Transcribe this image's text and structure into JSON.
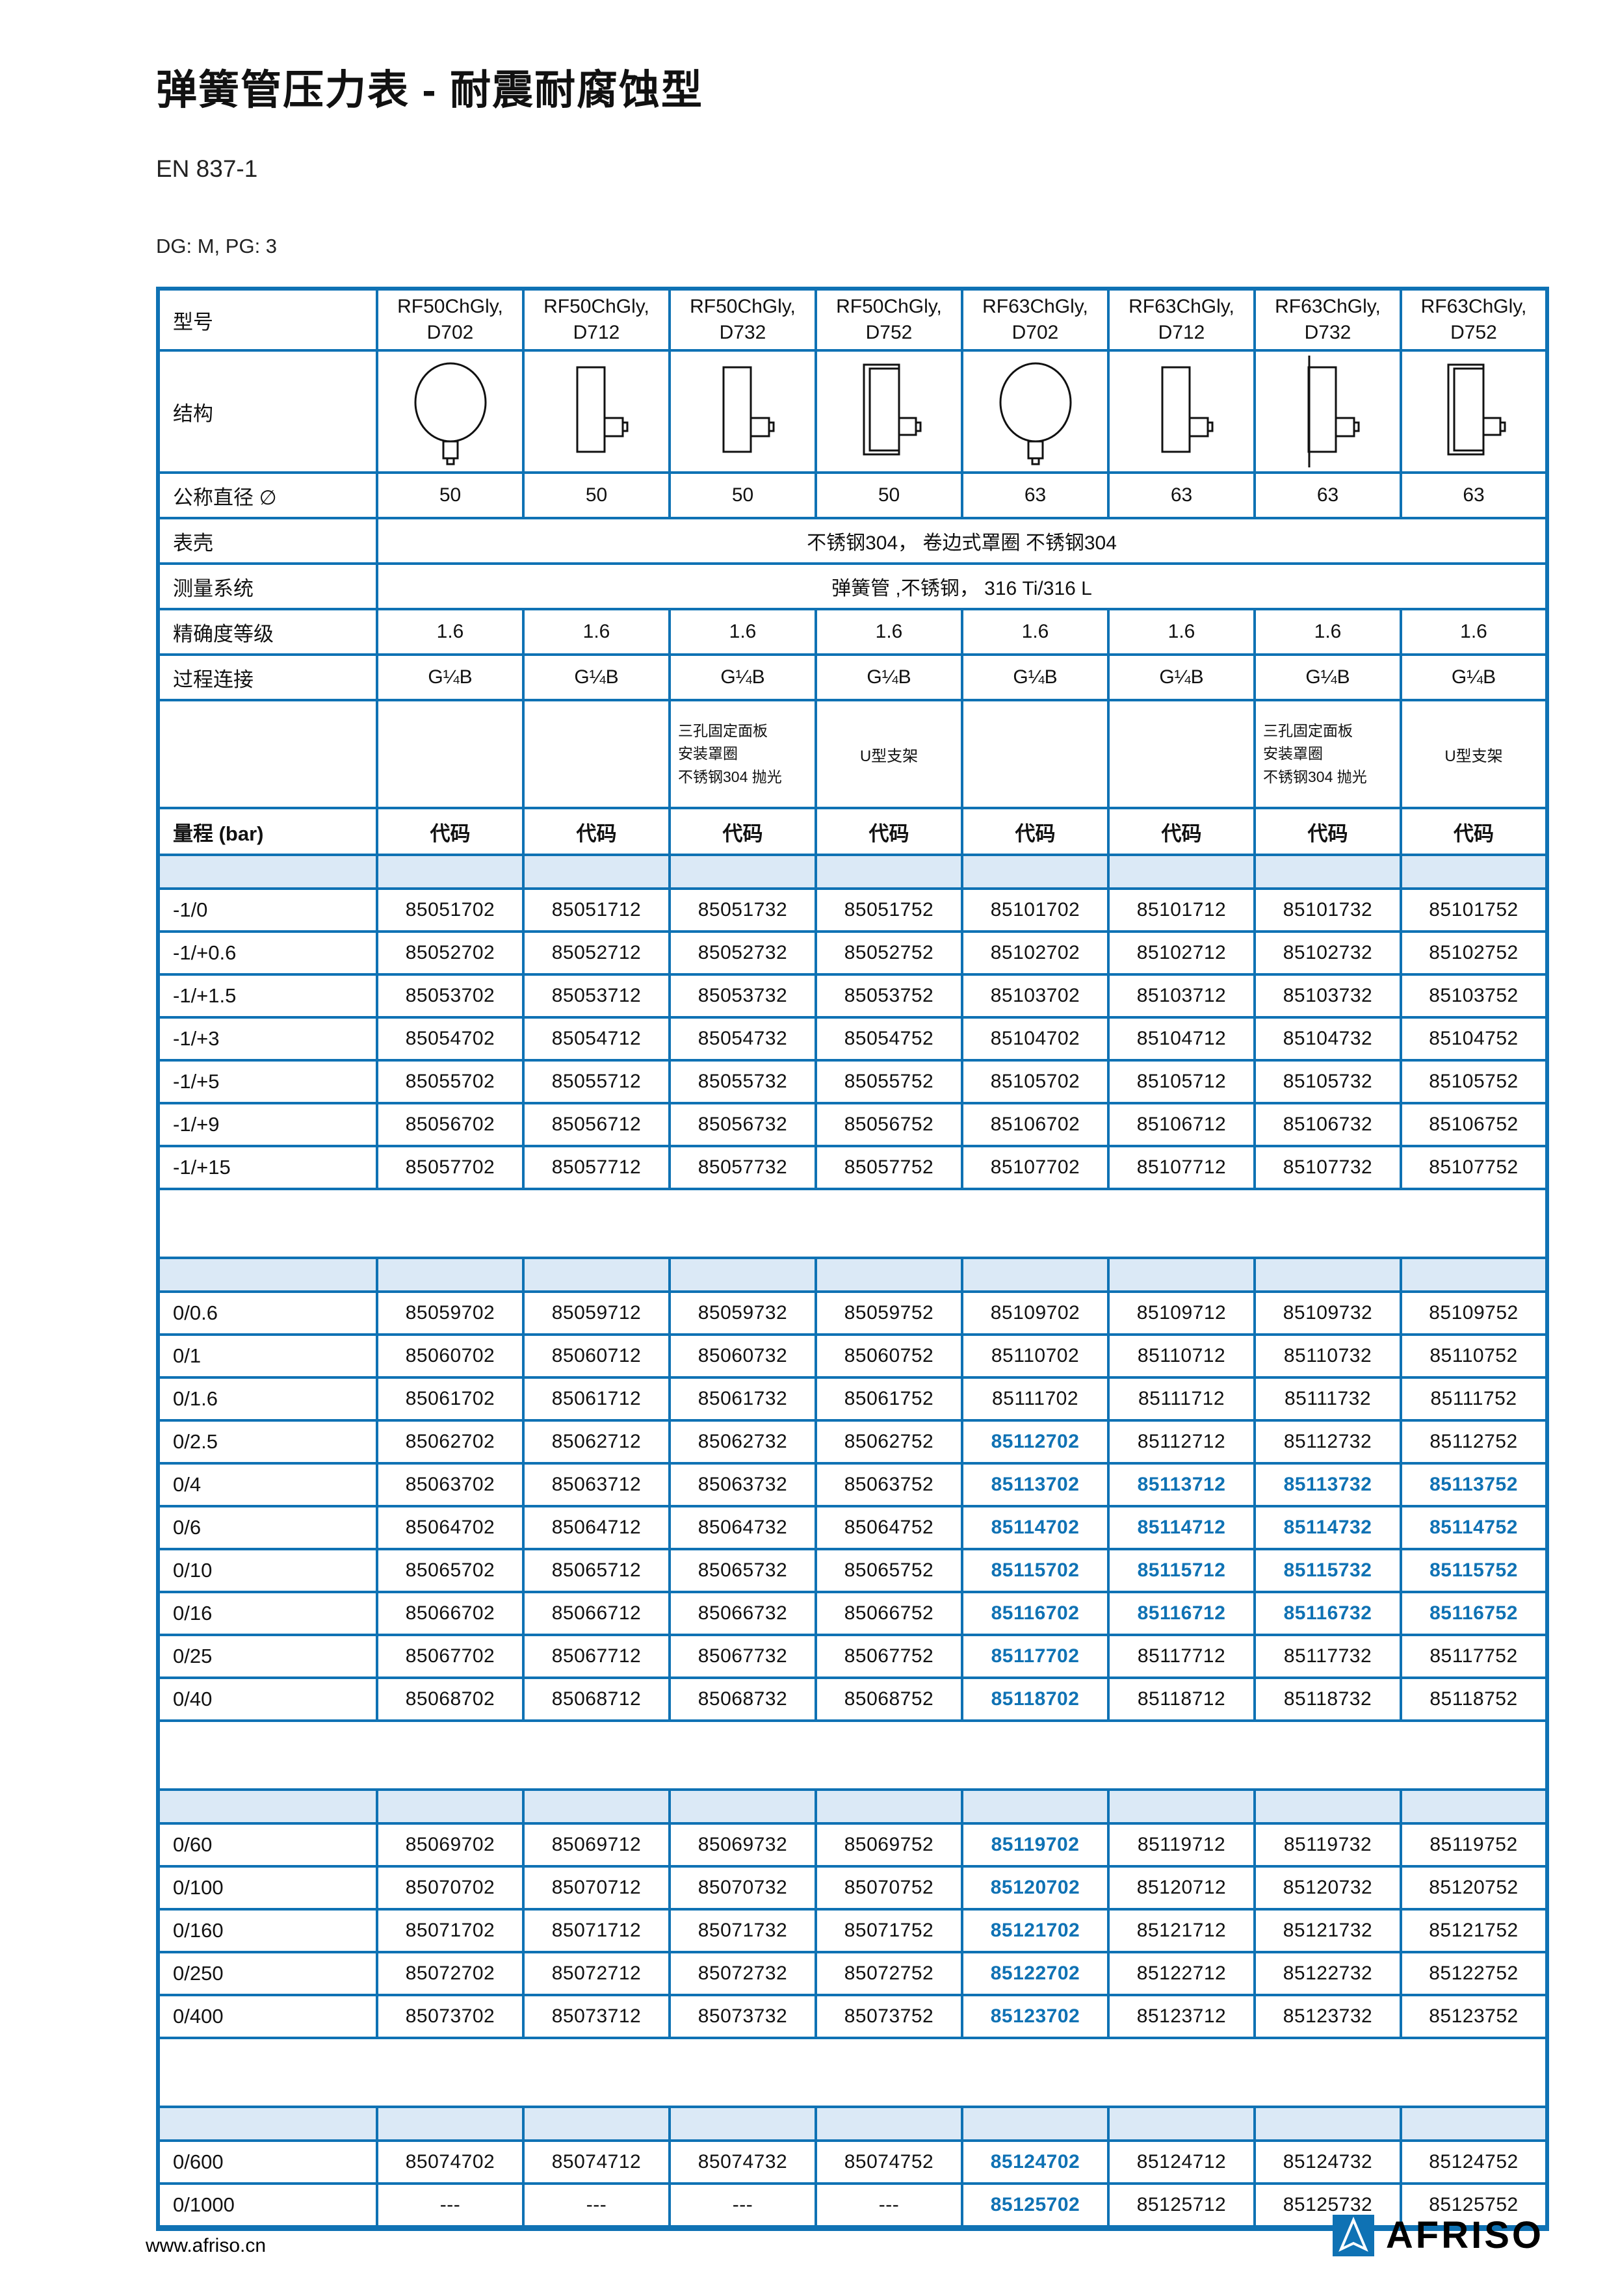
{
  "colors": {
    "accent": "#0f72b4",
    "spacer_fill": "#dbe9f6"
  },
  "page": {
    "title": "弹簧管压力表 - 耐震耐腐蚀型",
    "standard": "EN 837-1",
    "dg_pg": "DG: M, PG: 3",
    "footer_url": "www.afriso.cn",
    "brand": "AFRISO"
  },
  "table": {
    "row_labels": {
      "model": "型号",
      "structure": "结构",
      "diameter": "公称直径 ∅",
      "case": "表壳",
      "measuring_system": "测量系统",
      "accuracy": "精确度等级",
      "process_connection": "过程连接",
      "range": "量程 (bar)"
    },
    "code_header": "代码",
    "case_value": "不锈钢304， 卷边式罩圈 不锈钢304",
    "measuring_value": "弹簧管 ,不锈钢， 316 Ti/316 L",
    "option_panel_lines": [
      "三孔固定面板",
      "安装罩圈",
      "不锈钢304 抛光"
    ],
    "option_ubracket": "U型支架",
    "columns": [
      {
        "model": "RF50ChGly,",
        "variant": "D702",
        "drawing": "front",
        "diameter": "50",
        "accuracy": "1.6",
        "connection": "G¼B",
        "option": "none"
      },
      {
        "model": "RF50ChGly,",
        "variant": "D712",
        "drawing": "side",
        "diameter": "50",
        "accuracy": "1.6",
        "connection": "G¼B",
        "option": "none"
      },
      {
        "model": "RF50ChGly,",
        "variant": "D732",
        "drawing": "side",
        "diameter": "50",
        "accuracy": "1.6",
        "connection": "G¼B",
        "option": "panel"
      },
      {
        "model": "RF50ChGly,",
        "variant": "D752",
        "drawing": "side-flange",
        "diameter": "50",
        "accuracy": "1.6",
        "connection": "G¼B",
        "option": "ubracket"
      },
      {
        "model": "RF63ChGly,",
        "variant": "D702",
        "drawing": "front",
        "diameter": "63",
        "accuracy": "1.6",
        "connection": "G¼B",
        "option": "none"
      },
      {
        "model": "RF63ChGly,",
        "variant": "D712",
        "drawing": "side",
        "diameter": "63",
        "accuracy": "1.6",
        "connection": "G¼B",
        "option": "none"
      },
      {
        "model": "RF63ChGly,",
        "variant": "D732",
        "drawing": "side-panel",
        "diameter": "63",
        "accuracy": "1.6",
        "connection": "G¼B",
        "option": "panel"
      },
      {
        "model": "RF63ChGly,",
        "variant": "D752",
        "drawing": "side-flange",
        "diameter": "63",
        "accuracy": "1.6",
        "connection": "G¼B",
        "option": "ubracket"
      }
    ],
    "sections": [
      {
        "rows": [
          {
            "range": "-1/0",
            "codes": [
              "85051702",
              "85051712",
              "85051732",
              "85051752",
              "85101702",
              "85101712",
              "85101732",
              "85101752"
            ],
            "hl": []
          },
          {
            "range": "-1/+0.6",
            "codes": [
              "85052702",
              "85052712",
              "85052732",
              "85052752",
              "85102702",
              "85102712",
              "85102732",
              "85102752"
            ],
            "hl": []
          },
          {
            "range": "-1/+1.5",
            "codes": [
              "85053702",
              "85053712",
              "85053732",
              "85053752",
              "85103702",
              "85103712",
              "85103732",
              "85103752"
            ],
            "hl": []
          },
          {
            "range": "-1/+3",
            "codes": [
              "85054702",
              "85054712",
              "85054732",
              "85054752",
              "85104702",
              "85104712",
              "85104732",
              "85104752"
            ],
            "hl": []
          },
          {
            "range": "-1/+5",
            "codes": [
              "85055702",
              "85055712",
              "85055732",
              "85055752",
              "85105702",
              "85105712",
              "85105732",
              "85105752"
            ],
            "hl": []
          },
          {
            "range": "-1/+9",
            "codes": [
              "85056702",
              "85056712",
              "85056732",
              "85056752",
              "85106702",
              "85106712",
              "85106732",
              "85106752"
            ],
            "hl": []
          },
          {
            "range": "-1/+15",
            "codes": [
              "85057702",
              "85057712",
              "85057732",
              "85057752",
              "85107702",
              "85107712",
              "85107732",
              "85107752"
            ],
            "hl": []
          }
        ]
      },
      {
        "rows": [
          {
            "range": "0/0.6",
            "codes": [
              "85059702",
              "85059712",
              "85059732",
              "85059752",
              "85109702",
              "85109712",
              "85109732",
              "85109752"
            ],
            "hl": []
          },
          {
            "range": "0/1",
            "codes": [
              "85060702",
              "85060712",
              "85060732",
              "85060752",
              "85110702",
              "85110712",
              "85110732",
              "85110752"
            ],
            "hl": []
          },
          {
            "range": "0/1.6",
            "codes": [
              "85061702",
              "85061712",
              "85061732",
              "85061752",
              "85111702",
              "85111712",
              "85111732",
              "85111752"
            ],
            "hl": []
          },
          {
            "range": "0/2.5",
            "codes": [
              "85062702",
              "85062712",
              "85062732",
              "85062752",
              "85112702",
              "85112712",
              "85112732",
              "85112752"
            ],
            "hl": [
              4
            ]
          },
          {
            "range": "0/4",
            "codes": [
              "85063702",
              "85063712",
              "85063732",
              "85063752",
              "85113702",
              "85113712",
              "85113732",
              "85113752"
            ],
            "hl": [
              4,
              5,
              6,
              7
            ]
          },
          {
            "range": "0/6",
            "codes": [
              "85064702",
              "85064712",
              "85064732",
              "85064752",
              "85114702",
              "85114712",
              "85114732",
              "85114752"
            ],
            "hl": [
              4,
              5,
              6,
              7
            ]
          },
          {
            "range": "0/10",
            "codes": [
              "85065702",
              "85065712",
              "85065732",
              "85065752",
              "85115702",
              "85115712",
              "85115732",
              "85115752"
            ],
            "hl": [
              4,
              5,
              6,
              7
            ]
          },
          {
            "range": "0/16",
            "codes": [
              "85066702",
              "85066712",
              "85066732",
              "85066752",
              "85116702",
              "85116712",
              "85116732",
              "85116752"
            ],
            "hl": [
              4,
              5,
              6,
              7
            ]
          },
          {
            "range": "0/25",
            "codes": [
              "85067702",
              "85067712",
              "85067732",
              "85067752",
              "85117702",
              "85117712",
              "85117732",
              "85117752"
            ],
            "hl": [
              4
            ]
          },
          {
            "range": "0/40",
            "codes": [
              "85068702",
              "85068712",
              "85068732",
              "85068752",
              "85118702",
              "85118712",
              "85118732",
              "85118752"
            ],
            "hl": [
              4
            ]
          }
        ]
      },
      {
        "rows": [
          {
            "range": "0/60",
            "codes": [
              "85069702",
              "85069712",
              "85069732",
              "85069752",
              "85119702",
              "85119712",
              "85119732",
              "85119752"
            ],
            "hl": [
              4
            ]
          },
          {
            "range": "0/100",
            "codes": [
              "85070702",
              "85070712",
              "85070732",
              "85070752",
              "85120702",
              "85120712",
              "85120732",
              "85120752"
            ],
            "hl": [
              4
            ]
          },
          {
            "range": "0/160",
            "codes": [
              "85071702",
              "85071712",
              "85071732",
              "85071752",
              "85121702",
              "85121712",
              "85121732",
              "85121752"
            ],
            "hl": [
              4
            ]
          },
          {
            "range": "0/250",
            "codes": [
              "85072702",
              "85072712",
              "85072732",
              "85072752",
              "85122702",
              "85122712",
              "85122732",
              "85122752"
            ],
            "hl": [
              4
            ]
          },
          {
            "range": "0/400",
            "codes": [
              "85073702",
              "85073712",
              "85073732",
              "85073752",
              "85123702",
              "85123712",
              "85123732",
              "85123752"
            ],
            "hl": [
              4
            ]
          }
        ]
      },
      {
        "rows": [
          {
            "range": "0/600",
            "codes": [
              "85074702",
              "85074712",
              "85074732",
              "85074752",
              "85124702",
              "85124712",
              "85124732",
              "85124752"
            ],
            "hl": [
              4
            ]
          },
          {
            "range": "0/1000",
            "codes": [
              "---",
              "---",
              "---",
              "---",
              "85125702",
              "85125712",
              "85125732",
              "85125752"
            ],
            "hl": [
              4
            ]
          }
        ]
      }
    ]
  }
}
